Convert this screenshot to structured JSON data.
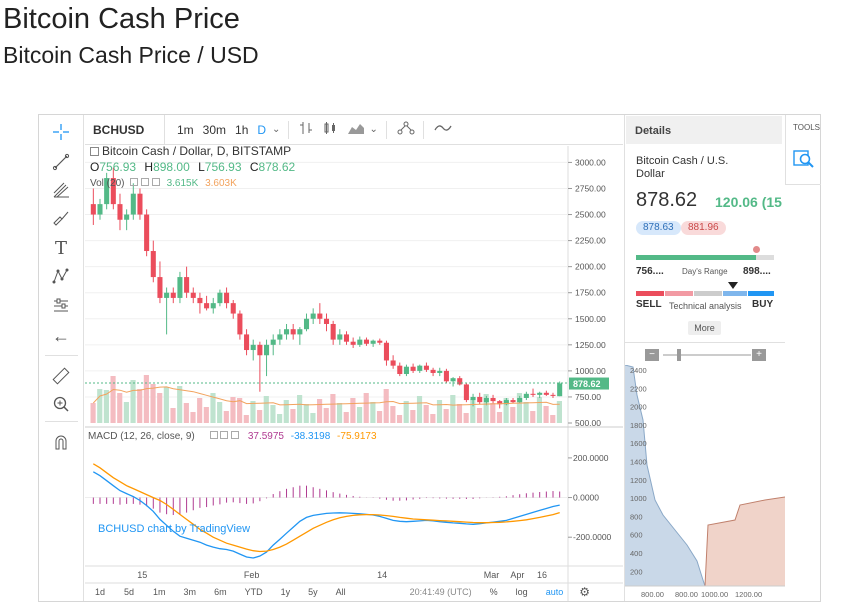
{
  "page": {
    "title": "Bitcoin Cash Price",
    "subtitle": "Bitcoin Cash Price / USD"
  },
  "toolbar": {
    "symbol": "BCHUSD",
    "intervals": [
      "1m",
      "30m",
      "1h",
      "D"
    ],
    "active_interval": "D"
  },
  "legend": {
    "title": "Bitcoin Cash / Dollar, D, BITSTAMP",
    "o_label": "O",
    "o_value": "756.93",
    "h_label": "H",
    "h_value": "898.00",
    "l_label": "L",
    "l_value": "756.93",
    "c_label": "C",
    "c_value": "878.62",
    "vol_label": "Vol (20)",
    "vol_value1": "3.615K",
    "vol_value2": "3.603K",
    "macd_label": "MACD (12, 26, close, 9)",
    "macd_v1": "37.5975",
    "macd_v2": "-38.3198",
    "macd_v3": "-75.9173",
    "watermark": "BCHUSD chart by TradingView"
  },
  "price_axis": [
    "3000.00",
    "2750.00",
    "2500.00",
    "2250.00",
    "2000.00",
    "1750.00",
    "1500.00",
    "1250.00",
    "1000.00",
    "750.00",
    "500.00"
  ],
  "last_price_tag": "878.62",
  "macd_axis": [
    "200.0000",
    "0.0000",
    "-200.0000"
  ],
  "time_axis": [
    "15",
    "Feb",
    "14",
    "Mar",
    "Apr",
    "16"
  ],
  "bottom_bar": {
    "ranges": [
      "1d",
      "5d",
      "1m",
      "3m",
      "6m",
      "YTD",
      "1y",
      "5y",
      "All"
    ],
    "time": "20:41:49 (UTC)",
    "percent": "%",
    "log": "log",
    "auto": "auto"
  },
  "details": {
    "header": "Details",
    "name": "Bitcoin Cash / U.S. Dollar",
    "price": "878.62",
    "change": "120.06 (15",
    "bid": "878.63",
    "ask": "881.96",
    "range_low": "756....",
    "range_label": "Day's Range",
    "range_high": "898....",
    "sell": "SELL",
    "ta_label": "Technical analysis",
    "buy": "BUY",
    "more": "More",
    "depth_y": [
      "2400",
      "2200",
      "2000",
      "1800",
      "1600",
      "1400",
      "1200",
      "1000",
      "800",
      "600",
      "400",
      "200"
    ],
    "depth_x": [
      "800.00",
      "800.00",
      "1000.00",
      "1200.00"
    ]
  },
  "tools_label": "TOOLS",
  "colors": {
    "up": "#53b987",
    "down": "#eb4d5c",
    "macd_line": "#2196f3",
    "signal_line": "#ff9800",
    "accent": "#2196f3"
  },
  "chart_data": {
    "type": "candlestick",
    "candles": [
      [
        2600,
        2750,
        2400,
        2500
      ],
      [
        2500,
        2650,
        2450,
        2600
      ],
      [
        2600,
        2900,
        2550,
        2850
      ],
      [
        2850,
        2950,
        2550,
        2600
      ],
      [
        2600,
        2700,
        2350,
        2450
      ],
      [
        2450,
        2550,
        2350,
        2500
      ],
      [
        2500,
        2800,
        2450,
        2700
      ],
      [
        2700,
        2750,
        2450,
        2500
      ],
      [
        2500,
        2550,
        2100,
        2150
      ],
      [
        2150,
        2250,
        1850,
        1900
      ],
      [
        1900,
        2050,
        1650,
        1700
      ],
      [
        1700,
        1800,
        1350,
        1750
      ],
      [
        1750,
        1800,
        1650,
        1700
      ],
      [
        1700,
        1950,
        1650,
        1900
      ],
      [
        1900,
        2000,
        1700,
        1750
      ],
      [
        1750,
        1800,
        1650,
        1700
      ],
      [
        1700,
        1750,
        1550,
        1650
      ],
      [
        1650,
        1720,
        1580,
        1600
      ],
      [
        1600,
        1700,
        1550,
        1650
      ],
      [
        1650,
        1780,
        1620,
        1750
      ],
      [
        1750,
        1800,
        1600,
        1650
      ],
      [
        1650,
        1680,
        1500,
        1550
      ],
      [
        1550,
        1580,
        1300,
        1350
      ],
      [
        1350,
        1400,
        1150,
        1200
      ],
      [
        1200,
        1300,
        1100,
        1250
      ],
      [
        1250,
        1280,
        800,
        1150
      ],
      [
        1150,
        1300,
        950,
        1250
      ],
      [
        1250,
        1350,
        1150,
        1300
      ],
      [
        1300,
        1400,
        1250,
        1350
      ],
      [
        1350,
        1450,
        1300,
        1400
      ],
      [
        1400,
        1450,
        1300,
        1350
      ],
      [
        1350,
        1420,
        1250,
        1400
      ],
      [
        1400,
        1550,
        1380,
        1500
      ],
      [
        1500,
        1600,
        1450,
        1550
      ],
      [
        1550,
        1650,
        1450,
        1500
      ],
      [
        1500,
        1550,
        1380,
        1450
      ],
      [
        1450,
        1480,
        1250,
        1300
      ],
      [
        1300,
        1400,
        1250,
        1350
      ],
      [
        1350,
        1380,
        1250,
        1280
      ],
      [
        1280,
        1320,
        1220,
        1250
      ],
      [
        1250,
        1330,
        1230,
        1300
      ],
      [
        1300,
        1320,
        1240,
        1260
      ],
      [
        1260,
        1300,
        1230,
        1290
      ],
      [
        1290,
        1310,
        1250,
        1270
      ],
      [
        1270,
        1290,
        1050,
        1100
      ],
      [
        1100,
        1150,
        1020,
        1050
      ],
      [
        1050,
        1080,
        950,
        970
      ],
      [
        970,
        1060,
        950,
        1040
      ],
      [
        1040,
        1070,
        980,
        1000
      ],
      [
        1000,
        1060,
        980,
        1050
      ],
      [
        1050,
        1080,
        990,
        1010
      ],
      [
        1010,
        1030,
        950,
        980
      ],
      [
        980,
        1030,
        950,
        1000
      ],
      [
        1000,
        1020,
        880,
        900
      ],
      [
        900,
        940,
        850,
        930
      ],
      [
        930,
        950,
        860,
        870
      ],
      [
        870,
        880,
        700,
        720
      ],
      [
        720,
        780,
        660,
        750
      ],
      [
        750,
        790,
        680,
        700
      ],
      [
        700,
        760,
        670,
        740
      ],
      [
        740,
        770,
        690,
        710
      ],
      [
        710,
        720,
        640,
        680
      ],
      [
        680,
        740,
        670,
        720
      ],
      [
        720,
        740,
        690,
        700
      ],
      [
        700,
        760,
        690,
        740
      ],
      [
        740,
        800,
        720,
        780
      ],
      [
        780,
        830,
        750,
        770
      ],
      [
        770,
        800,
        740,
        790
      ],
      [
        790,
        810,
        760,
        770
      ],
      [
        770,
        790,
        740,
        760
      ],
      [
        757,
        898,
        757,
        879
      ]
    ],
    "macd": [
      130,
      110,
      85,
      60,
      35,
      20,
      5,
      -15,
      -40,
      -70,
      -110,
      -140,
      -170,
      -195,
      -205,
      -215,
      -225,
      -240,
      -250,
      -258,
      -262,
      -270,
      -285,
      -300,
      -305,
      -295,
      -275,
      -240,
      -210,
      -180,
      -150,
      -120,
      -100,
      -90,
      -85,
      -80,
      -78,
      -77,
      -78,
      -80,
      -82,
      -85,
      -88,
      -95,
      -105,
      -115,
      -120,
      -122,
      -120,
      -118,
      -115,
      -118,
      -122,
      -125,
      -128,
      -130,
      -133,
      -135,
      -132,
      -128,
      -124,
      -120,
      -115,
      -105,
      -95,
      -85,
      -75,
      -65,
      -55,
      -45,
      -38
    ],
    "signal": [
      170,
      150,
      125,
      100,
      80,
      60,
      45,
      30,
      15,
      0,
      -15,
      -35,
      -60,
      -85,
      -110,
      -135,
      -160,
      -180,
      -200,
      -215,
      -230,
      -240,
      -250,
      -260,
      -268,
      -272,
      -270,
      -262,
      -250,
      -235,
      -215,
      -195,
      -175,
      -155,
      -140,
      -125,
      -112,
      -102,
      -95,
      -90,
      -87,
      -86,
      -86,
      -88,
      -91,
      -95,
      -100,
      -104,
      -108,
      -110,
      -112,
      -114,
      -116,
      -118,
      -120,
      -122,
      -124,
      -126,
      -127,
      -127,
      -126,
      -125,
      -123,
      -120,
      -116,
      -112,
      -106,
      -100,
      -93,
      -86,
      -76
    ],
    "price_range": [
      500,
      3100
    ],
    "macd_range": [
      -320,
      260
    ]
  }
}
